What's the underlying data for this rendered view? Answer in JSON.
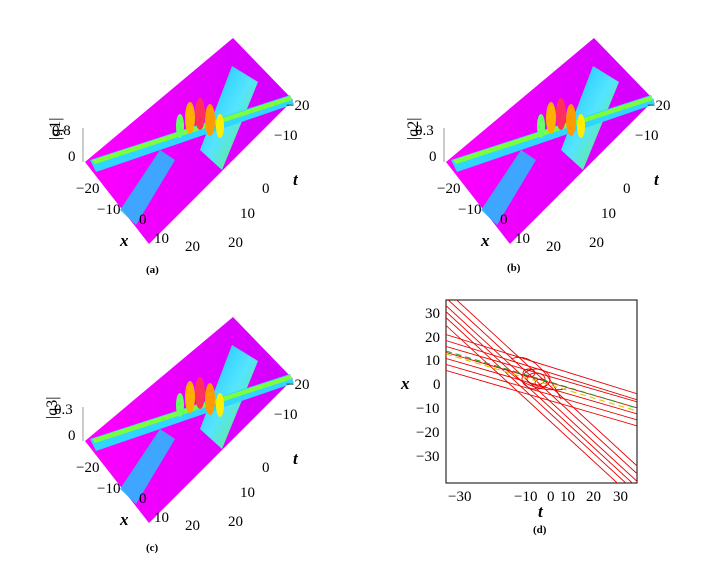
{
  "panels": [
    {
      "caption": "(a)",
      "zlabel": "|q1|",
      "zticks": [
        "0",
        "0.8"
      ],
      "xlabel": "x",
      "xticks": [
        "−20",
        "−10",
        "0",
        "10",
        "20"
      ],
      "tlabel": "t",
      "tticks": [
        "−20",
        "−10",
        "0",
        "10",
        "20"
      ]
    },
    {
      "caption": "(b)",
      "zlabel": "|q2|",
      "zticks": [
        "0",
        "0.3"
      ],
      "xlabel": "x",
      "xticks": [
        "−20",
        "−10",
        "0",
        "10",
        "20"
      ],
      "tlabel": "t",
      "tticks": [
        "−20",
        "−10",
        "0",
        "10",
        "20"
      ]
    },
    {
      "caption": "(c)",
      "zlabel": "|q3|",
      "zticks": [
        "0",
        "0.3"
      ],
      "xlabel": "x",
      "xticks": [
        "−20",
        "−10",
        "0",
        "10",
        "20"
      ],
      "tlabel": "t",
      "tticks": [
        "−20",
        "−10",
        "0",
        "10",
        "20"
      ]
    }
  ],
  "contour": {
    "caption": "(d)",
    "xlabel": "t",
    "ylabel": "x",
    "xticks": [
      "−30",
      "−10",
      "0",
      "10",
      "20",
      "30"
    ],
    "yticks": [
      "30",
      "20",
      "10",
      "0",
      "−10",
      "−20",
      "−30"
    ]
  },
  "colors": {
    "surface_base": "#ff00ff",
    "wave_low": "#00c8ff",
    "wave_high": "#66ff33",
    "peak": "#ffcc00",
    "contour": "#e80000"
  }
}
